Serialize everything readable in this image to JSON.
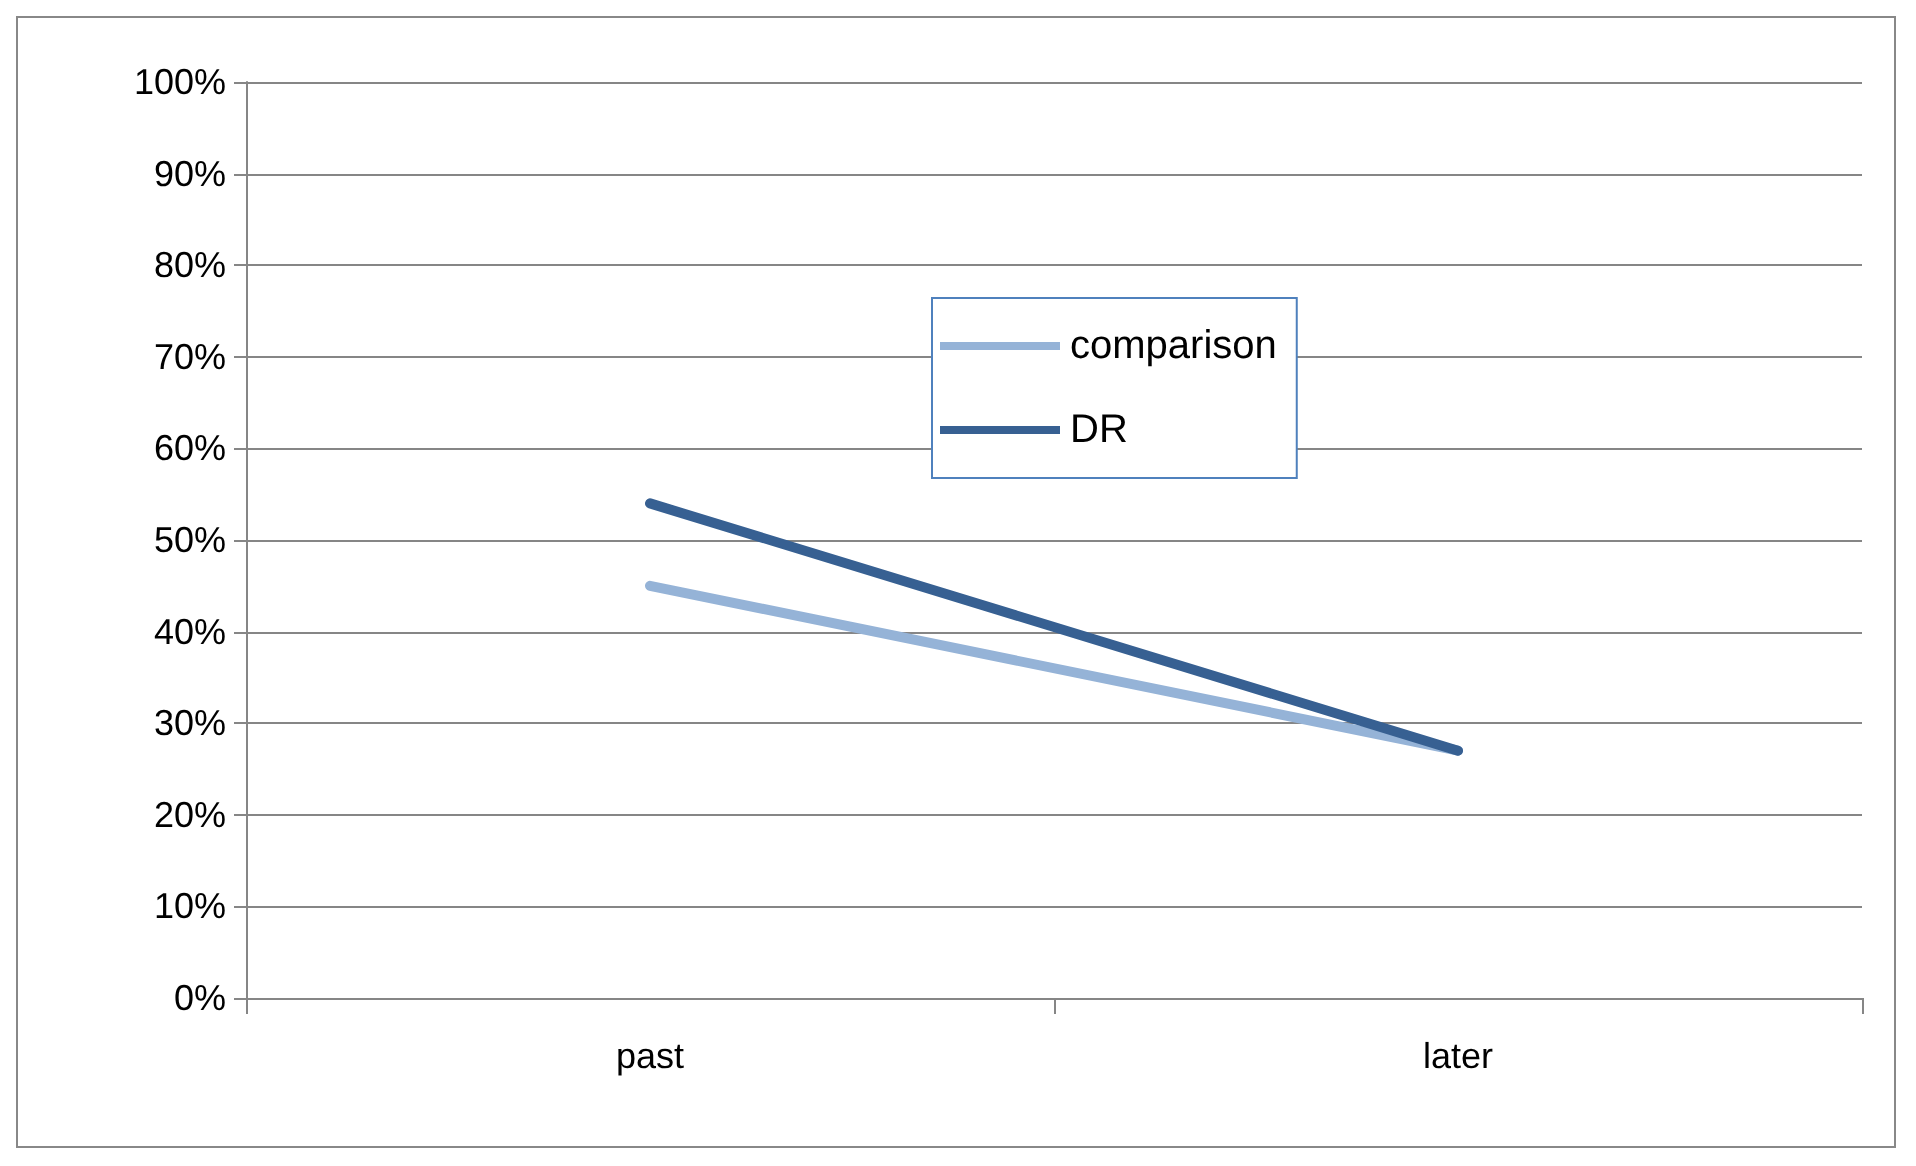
{
  "chart_data": {
    "type": "line",
    "categories": [
      "past",
      "later"
    ],
    "series": [
      {
        "name": "comparison",
        "color": "#95b3d7",
        "values": [
          45,
          27
        ]
      },
      {
        "name": "DR",
        "color": "#376092",
        "values": [
          54,
          27
        ]
      }
    ],
    "ylim": [
      0,
      100
    ],
    "yticks": [
      {
        "value": 0,
        "label": "0%"
      },
      {
        "value": 10,
        "label": "10%"
      },
      {
        "value": 20,
        "label": "20%"
      },
      {
        "value": 30,
        "label": "30%"
      },
      {
        "value": 40,
        "label": "40%"
      },
      {
        "value": 50,
        "label": "50%"
      },
      {
        "value": 60,
        "label": "60%"
      },
      {
        "value": 70,
        "label": "70%"
      },
      {
        "value": 80,
        "label": "80%"
      },
      {
        "value": 90,
        "label": "90%"
      },
      {
        "value": 100,
        "label": "100%"
      }
    ],
    "grid": "y",
    "legend": "top",
    "marker": "none",
    "line_style": "solid"
  }
}
